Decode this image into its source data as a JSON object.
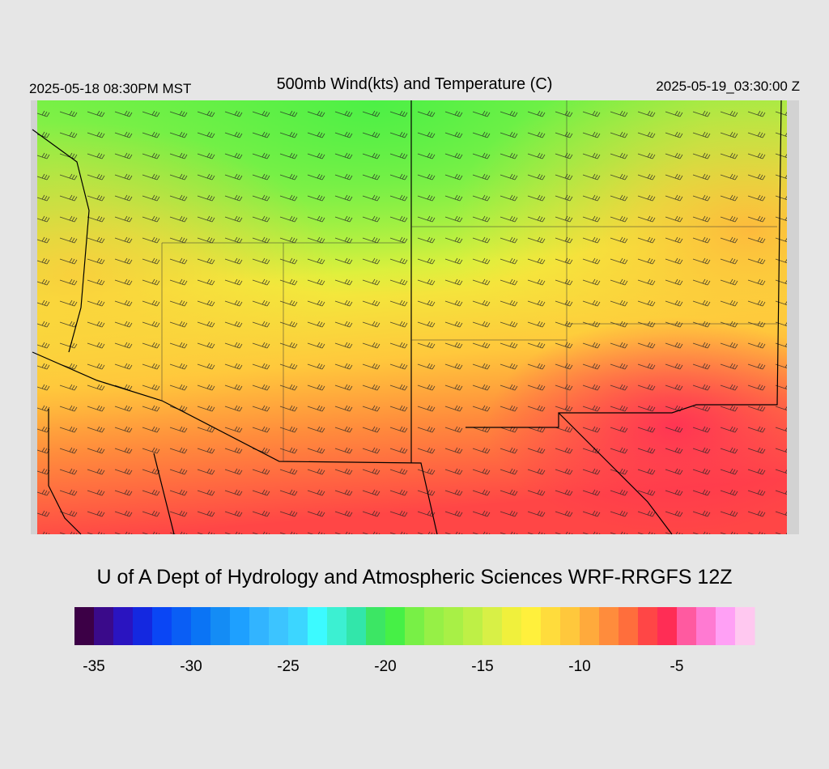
{
  "header": {
    "left": "2025-05-18 08:30PM MST",
    "title": "500mb Wind(kts) and Temperature (C)",
    "right": "2025-05-19_03:30:00 Z"
  },
  "credit": "U of A Dept of Hydrology and Atmospheric Sciences WRF-RRGFS 12Z",
  "colorbar": {
    "lim": [
      -36,
      -1
    ],
    "ticks": [
      -35,
      -30,
      -25,
      -20,
      -15,
      -10,
      -5
    ],
    "colors": [
      "#3c0046",
      "#3a0a8a",
      "#2a14c0",
      "#1428e0",
      "#0a46f5",
      "#0a5ef5",
      "#0a74f5",
      "#148cf5",
      "#1ea0ff",
      "#32b4ff",
      "#3cc4ff",
      "#3cd6ff",
      "#3cfaff",
      "#3cf0d2",
      "#32e6aa",
      "#3ce664",
      "#46f046",
      "#78f046",
      "#96f046",
      "#a8f046",
      "#bef046",
      "#d8f046",
      "#f0f03c",
      "#fff03c",
      "#ffdc3c",
      "#ffc83c",
      "#ffaa3c",
      "#ff8c3c",
      "#ff6e3c",
      "#ff4646",
      "#ff2d55",
      "#ff5aa0",
      "#ff7ad2",
      "#ffa0f5",
      "#ffc8f0"
    ]
  }
}
